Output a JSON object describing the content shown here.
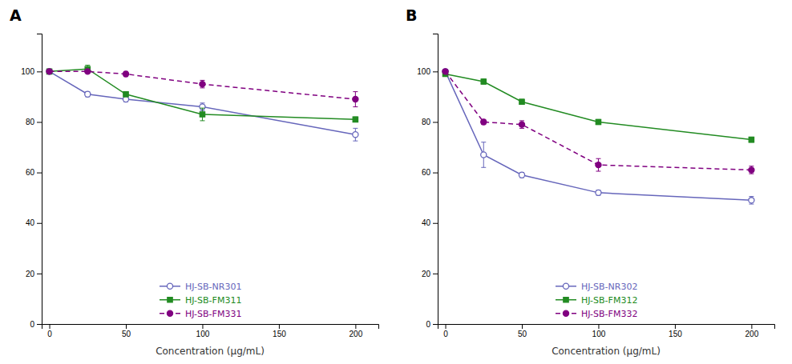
{
  "chart_data": [
    {
      "type": "line",
      "title": "A",
      "xlabel": "Concentration (μg/mL)",
      "x": [
        0,
        25,
        50,
        100,
        200
      ],
      "series": [
        {
          "name": "HJ-SB-NR301",
          "color": "#6666bb",
          "marker": "circle-open",
          "line_style": "solid",
          "values": [
            100,
            91,
            89,
            86,
            75
          ],
          "errors": [
            0.5,
            1.0,
            1.0,
            1.5,
            2.5
          ]
        },
        {
          "name": "HJ-SB-FM311",
          "color": "#228B22",
          "marker": "square",
          "line_style": "solid",
          "values": [
            100,
            101,
            91,
            83,
            81
          ],
          "errors": [
            0.5,
            1.5,
            1.0,
            2.5,
            1.0
          ]
        },
        {
          "name": "HJ-SB-FM331",
          "color": "#800080",
          "marker": "circle",
          "line_style": "dashed",
          "values": [
            100,
            100,
            99,
            95,
            89
          ],
          "errors": [
            0.5,
            0.5,
            1.0,
            1.5,
            3.0
          ]
        }
      ],
      "xlim": [
        -5,
        215
      ],
      "xticks": [
        0,
        50,
        100,
        150,
        200
      ],
      "ylim": [
        0,
        115
      ],
      "yticks": [
        0,
        20,
        40,
        60,
        80,
        100
      ],
      "grid": false,
      "legend": "bottom"
    },
    {
      "type": "line",
      "title": "B",
      "xlabel": "Concentration (μg/mL)",
      "x": [
        0,
        25,
        50,
        100,
        200
      ],
      "series": [
        {
          "name": "HJ-SB-NR302",
          "color": "#6666bb",
          "marker": "circle-open",
          "line_style": "solid",
          "values": [
            100,
            67,
            59,
            52,
            49
          ],
          "errors": [
            0.5,
            5.0,
            1.0,
            1.0,
            1.5
          ]
        },
        {
          "name": "HJ-SB-FM312",
          "color": "#228B22",
          "marker": "square",
          "line_style": "solid",
          "values": [
            99,
            96,
            88,
            80,
            73
          ],
          "errors": [
            0.5,
            1.0,
            1.0,
            1.0,
            1.0
          ]
        },
        {
          "name": "HJ-SB-FM332",
          "color": "#800080",
          "marker": "circle",
          "line_style": "dashed",
          "values": [
            100,
            80,
            79,
            63,
            61
          ],
          "errors": [
            0.5,
            1.0,
            1.5,
            2.5,
            1.5
          ]
        }
      ],
      "xlim": [
        -5,
        215
      ],
      "xticks": [
        0,
        50,
        100,
        150,
        200
      ],
      "ylim": [
        0,
        115
      ],
      "yticks": [
        0,
        20,
        40,
        60,
        80,
        100
      ],
      "grid": false,
      "legend": "bottom"
    }
  ]
}
